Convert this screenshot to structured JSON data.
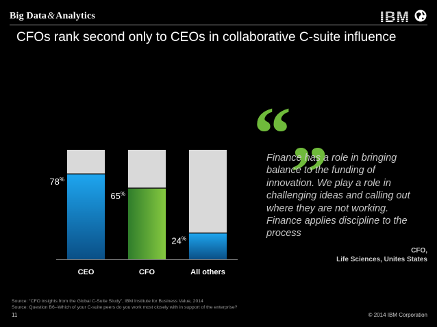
{
  "header": {
    "brand_part1": "Big Data",
    "brand_amp": "&",
    "brand_part2": "Analytics",
    "company_logo": "IBM",
    "globe_icon": "globe-icon"
  },
  "title": "CFOs rank second only to CEOs in collaborative C-suite influence",
  "chart_data": {
    "type": "bar",
    "categories": [
      "CEO",
      "CFO",
      "All others"
    ],
    "values": [
      78,
      65,
      24
    ],
    "value_suffix": "%",
    "ylim": [
      0,
      100
    ],
    "title": "",
    "xlabel": "",
    "ylabel": "",
    "grid": false,
    "bar_colors": [
      "#1b8fdb",
      "#6fba3b",
      "#1b8fdb"
    ],
    "background_bar_color": "#d9d9d9"
  },
  "quote": {
    "mark": "“„",
    "text": "Finance has a role in bringing balance to the funding of innovation. We play a role in challenging ideas and calling out where they are not working. Finance applies discipline to the process",
    "attribution_line1": "CFO,",
    "attribution_line2": "Life Sciences, Unites States"
  },
  "footer": {
    "source_line1": "Source: “CFO insights from the Global C-Suite Study”, IBM Institute for Business Value, 2014",
    "source_line2": "Source: Question B6--Which of your C-suite peers do you work most closely with in support of the enterprise?",
    "page_number": "11",
    "copyright": "© 2014 IBM Corporation"
  },
  "colors": {
    "accent_green": "#6fba3b",
    "accent_blue": "#1b8fdb",
    "background": "#000000"
  }
}
